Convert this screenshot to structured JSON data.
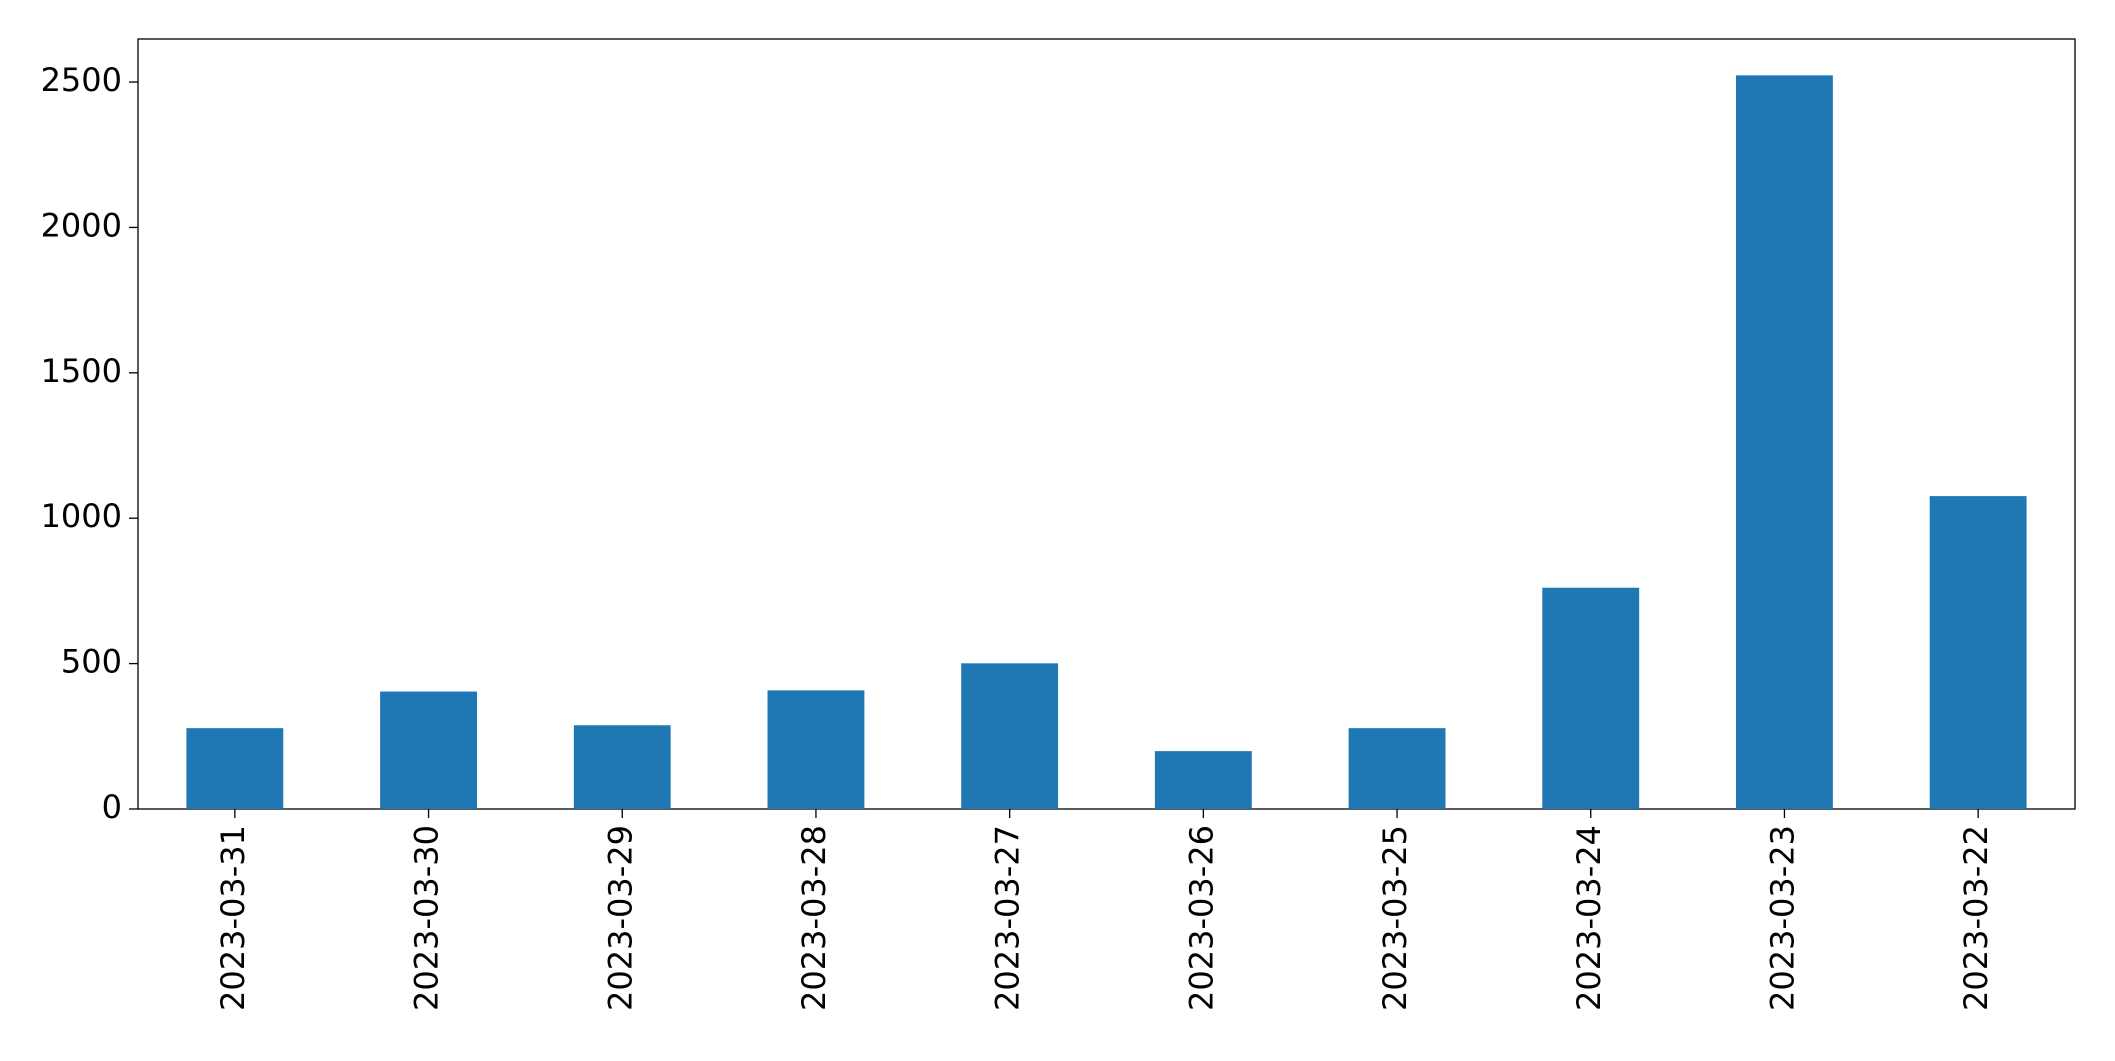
{
  "chart_data": {
    "type": "bar",
    "categories": [
      "2023-03-31",
      "2023-03-30",
      "2023-03-29",
      "2023-03-28",
      "2023-03-27",
      "2023-03-26",
      "2023-03-25",
      "2023-03-24",
      "2023-03-23",
      "2023-03-22"
    ],
    "values": [
      278,
      404,
      288,
      408,
      501,
      199,
      278,
      761,
      2523,
      1076
    ],
    "color": "#1f77b4",
    "ylim": [
      0,
      2648
    ],
    "yticks": [
      0,
      500,
      1000,
      1500,
      2000,
      2500
    ],
    "grid": false
  }
}
